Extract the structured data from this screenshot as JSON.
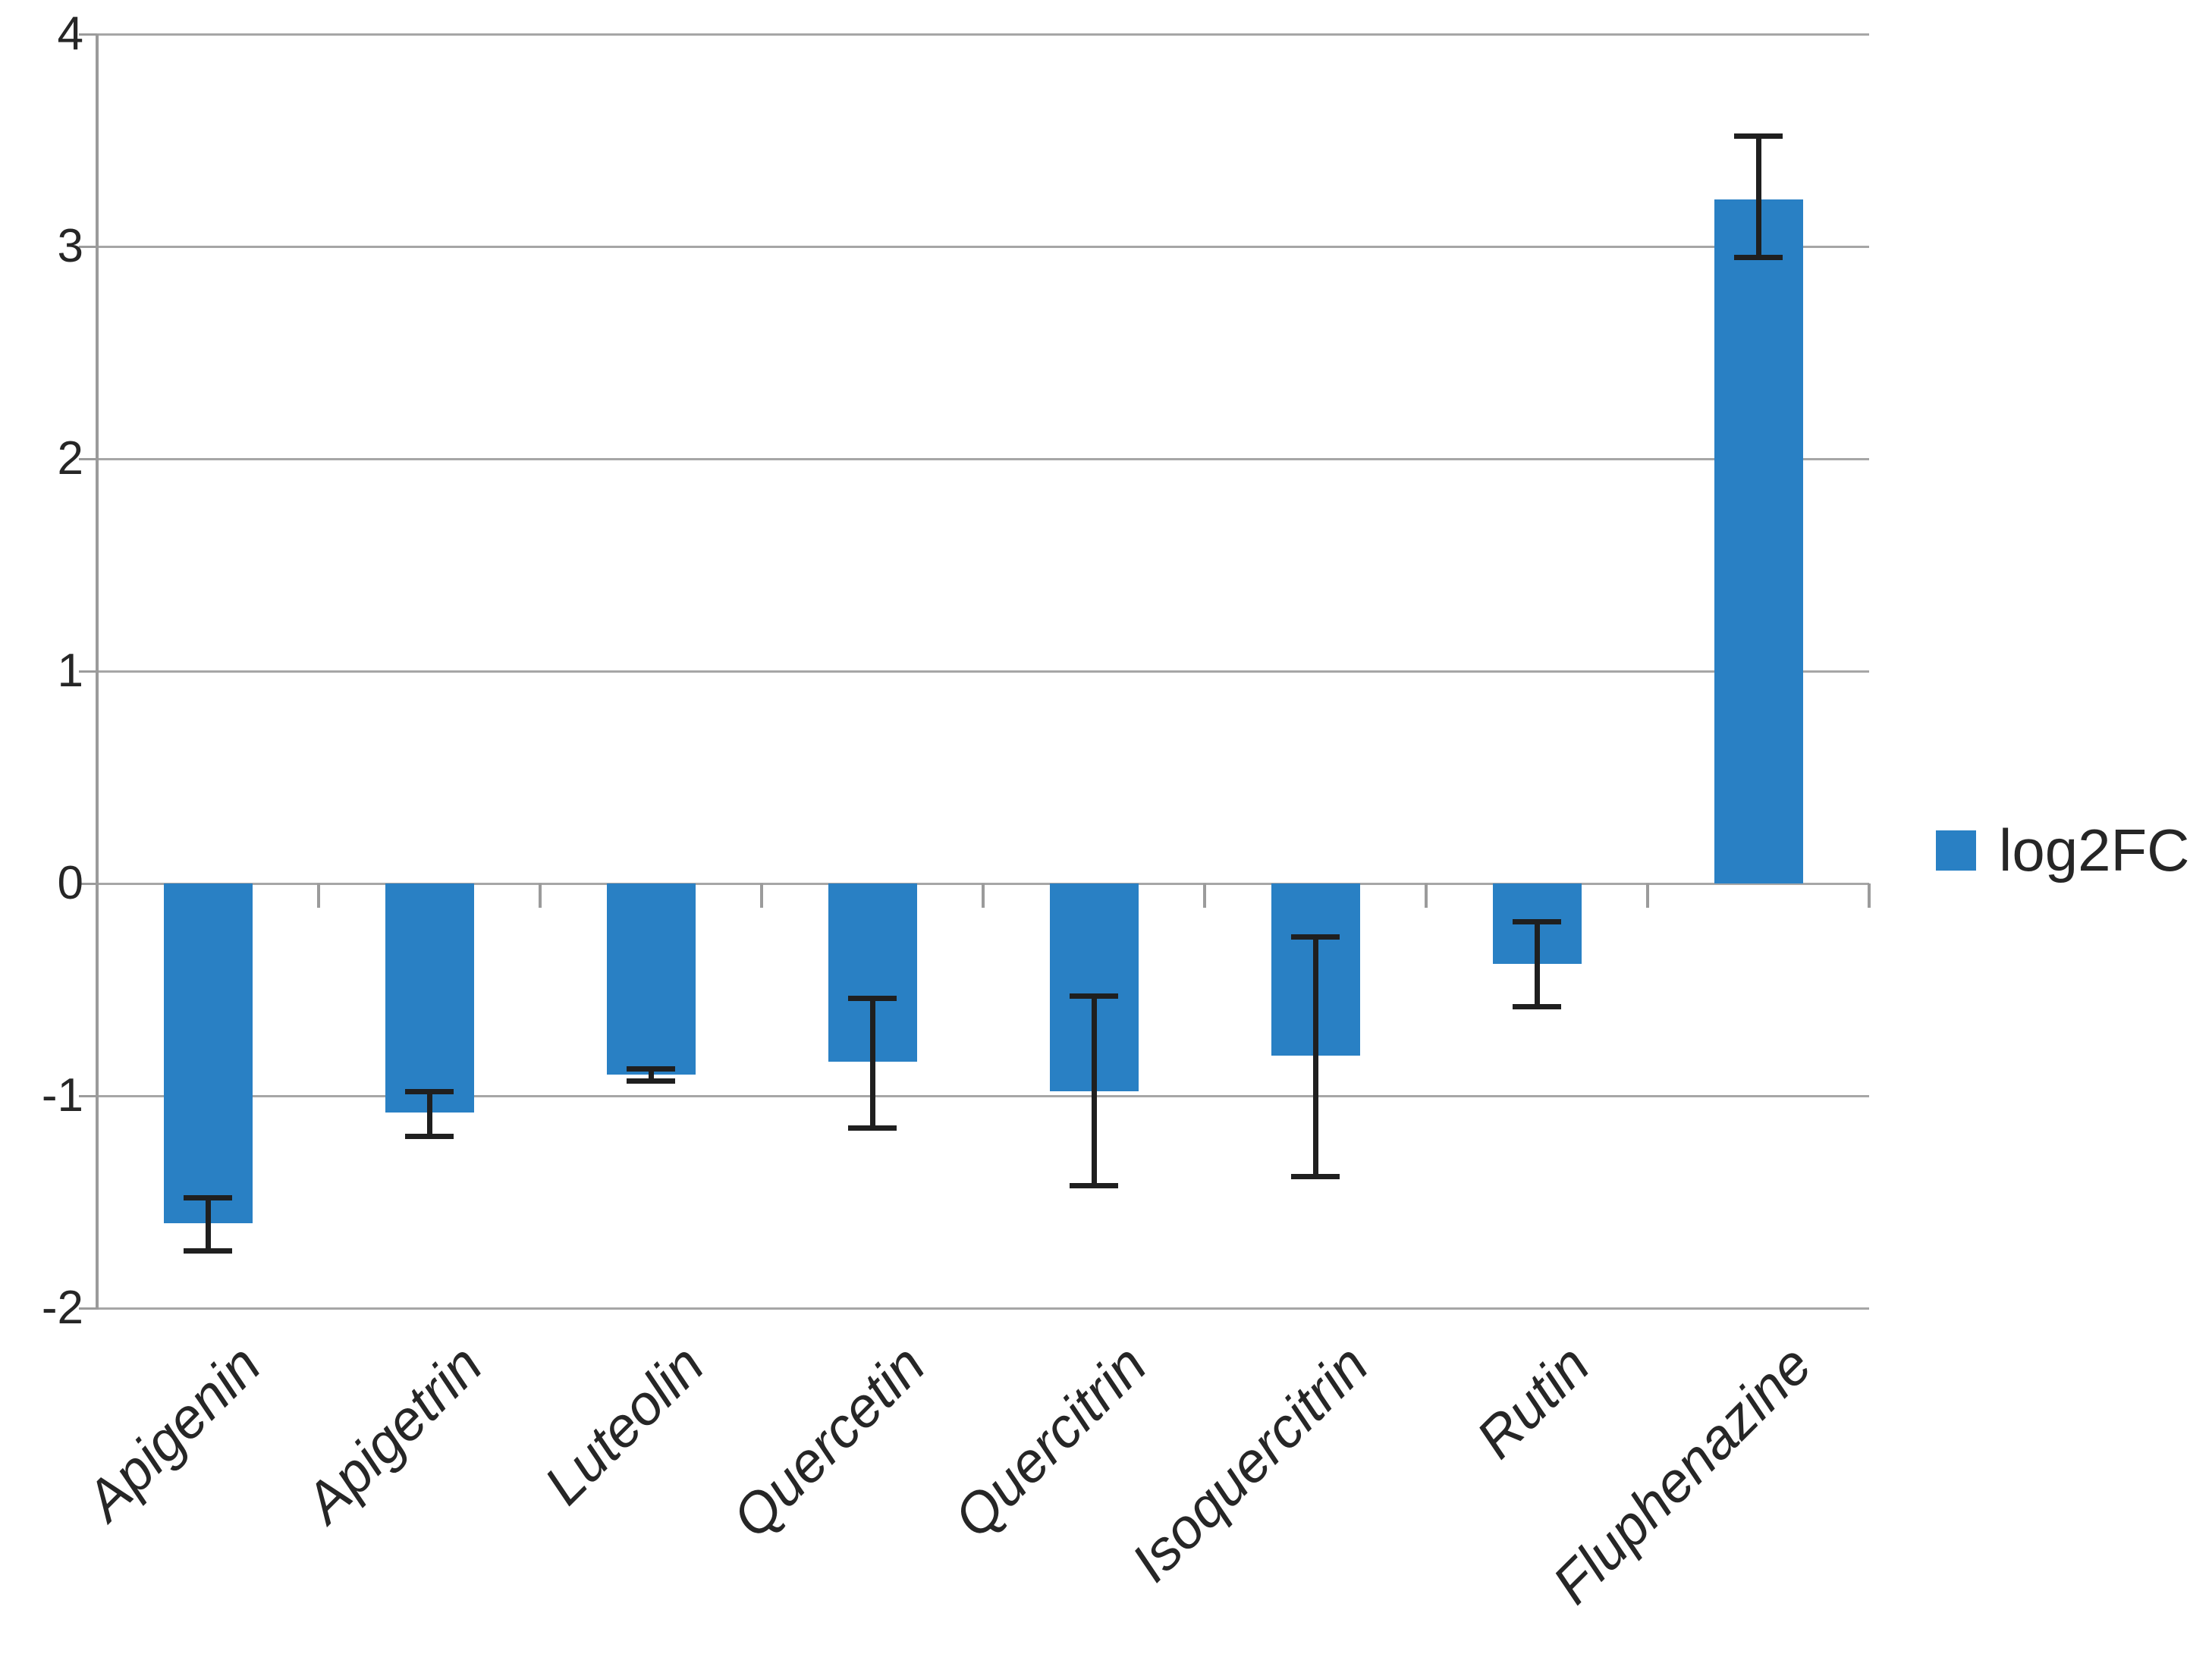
{
  "chart_data": {
    "type": "bar",
    "title": "",
    "xlabel": "",
    "ylabel": "",
    "categories": [
      "Apigenin",
      "Apigetrin",
      "Luteolin",
      "Quercetin",
      "Quercitrin",
      "Isoquercitrin",
      "Rutin",
      "Fluphenazine"
    ],
    "series": [
      {
        "name": "log2FC",
        "values": [
          -1.6,
          -1.08,
          -0.9,
          -0.84,
          -0.98,
          -0.81,
          -0.38,
          3.22
        ],
        "error_low": [
          -1.73,
          -1.19,
          -0.93,
          -1.15,
          -1.42,
          -1.38,
          -0.58,
          2.95
        ],
        "error_high": [
          -1.48,
          -0.98,
          -0.87,
          -0.54,
          -0.53,
          -0.25,
          -0.18,
          3.52
        ]
      }
    ],
    "ylim": [
      -2,
      4
    ],
    "yticks": [
      "4",
      "3",
      "2",
      "1",
      "0",
      "-1",
      "-2"
    ],
    "ytick_values": [
      4,
      3,
      2,
      1,
      0,
      -1,
      -2
    ],
    "grid": true,
    "error_bars": true,
    "legend": {
      "label": "log2FC",
      "position": "right"
    },
    "colors": {
      "bar": "#2980C4",
      "grid": "#A6A6A6",
      "axis": "#9B9B9B",
      "error": "#1F1F1F",
      "text": "#262626"
    }
  }
}
